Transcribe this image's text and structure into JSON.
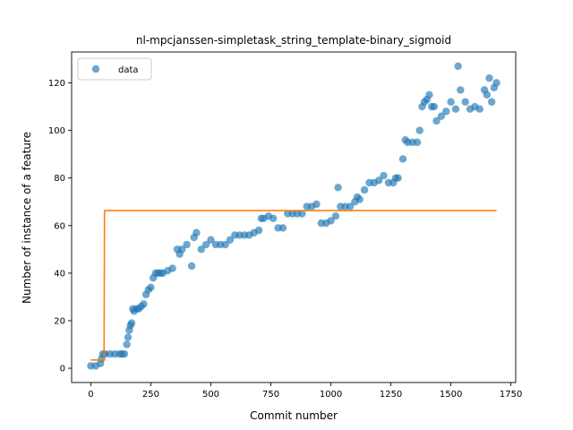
{
  "chart_data": {
    "type": "scatter",
    "title": "nl-mpcjanssen-simpletask_string_template-binary_sigmoid",
    "xlabel": "Commit number",
    "ylabel": "Number of instance of a feature",
    "xlim": [
      -80,
      1770
    ],
    "ylim": [
      -6,
      133
    ],
    "xticks": [
      0,
      250,
      500,
      750,
      1000,
      1250,
      1500,
      1750
    ],
    "yticks": [
      0,
      20,
      40,
      60,
      80,
      100,
      120
    ],
    "legend": {
      "position": "top-left",
      "entries": [
        "data"
      ]
    },
    "colors": {
      "data": "#1f77b4",
      "fit": "#ff7f0e"
    },
    "series": [
      {
        "name": "data",
        "type": "scatter",
        "x": [
          0,
          20,
          40,
          45,
          50,
          60,
          80,
          100,
          120,
          130,
          140,
          150,
          155,
          160,
          165,
          170,
          175,
          180,
          190,
          200,
          210,
          220,
          230,
          240,
          250,
          260,
          270,
          280,
          290,
          300,
          320,
          340,
          360,
          370,
          380,
          400,
          420,
          430,
          440,
          460,
          480,
          500,
          520,
          540,
          560,
          580,
          600,
          620,
          640,
          660,
          680,
          700,
          710,
          720,
          740,
          760,
          780,
          800,
          820,
          840,
          860,
          880,
          900,
          920,
          940,
          960,
          980,
          1000,
          1020,
          1030,
          1040,
          1060,
          1080,
          1100,
          1110,
          1120,
          1140,
          1160,
          1180,
          1200,
          1220,
          1240,
          1260,
          1270,
          1280,
          1300,
          1310,
          1320,
          1340,
          1360,
          1370,
          1380,
          1390,
          1400,
          1410,
          1420,
          1430,
          1440,
          1460,
          1480,
          1500,
          1520,
          1530,
          1540,
          1560,
          1580,
          1600,
          1620,
          1640,
          1650,
          1660,
          1670,
          1680,
          1690
        ],
        "y": [
          1,
          1,
          2,
          4,
          6,
          6,
          6,
          6,
          6,
          6,
          6,
          10,
          13,
          16,
          18,
          19,
          25,
          24,
          25,
          25,
          26,
          27,
          31,
          33,
          34,
          38,
          40,
          40,
          40,
          40,
          41,
          42,
          50,
          48,
          50,
          52,
          43,
          55,
          57,
          50,
          52,
          54,
          52,
          52,
          52,
          54,
          56,
          56,
          56,
          56,
          57,
          58,
          63,
          63,
          64,
          63,
          59,
          59,
          65,
          65,
          65,
          65,
          68,
          68,
          69,
          61,
          61,
          62,
          64,
          76,
          68,
          68,
          68,
          70,
          72,
          71,
          75,
          78,
          78,
          79,
          81,
          78,
          78,
          80,
          80,
          88,
          96,
          95,
          95,
          95,
          100,
          110,
          112,
          113,
          115,
          110,
          110,
          104,
          106,
          108,
          112,
          109,
          127,
          117,
          112,
          109,
          110,
          109,
          117,
          115,
          122,
          112,
          118,
          120
        ]
      },
      {
        "name": "",
        "type": "line",
        "x": [
          0,
          55,
          56,
          57,
          1690
        ],
        "y": [
          3.5,
          3.5,
          33,
          66.3,
          66.3
        ]
      }
    ]
  }
}
